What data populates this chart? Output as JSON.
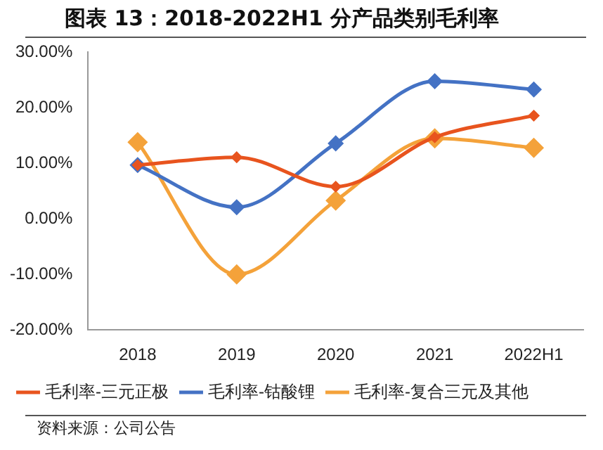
{
  "chart_data": {
    "type": "line",
    "title": "图表 13：2018-2022H1 分产品类别毛利率",
    "categories": [
      "2018",
      "2019",
      "2020",
      "2021",
      "2022H1"
    ],
    "series": [
      {
        "name": "毛利率-三元正极",
        "color": "#e8541e",
        "values": [
          9.7,
          11.1,
          5.8,
          14.7,
          18.6
        ]
      },
      {
        "name": "毛利率-钴酸锂",
        "color": "#4472c4",
        "values": [
          9.7,
          2.1,
          13.6,
          24.8,
          23.3
        ]
      },
      {
        "name": "毛利率-复合三元及其他",
        "color": "#f4a23a",
        "values": [
          13.8,
          -10.0,
          3.3,
          14.5,
          12.8
        ]
      }
    ],
    "ylim": [
      -20,
      30
    ],
    "yticks": [
      {
        "value": -20,
        "label": "-20.00%"
      },
      {
        "value": -10,
        "label": "-10.00%"
      },
      {
        "value": 0,
        "label": "0.00%"
      },
      {
        "value": 10,
        "label": "10.00%"
      },
      {
        "value": 20,
        "label": "20.00%"
      },
      {
        "value": 30,
        "label": "30.00%"
      }
    ],
    "grid": false,
    "legend": "bottom",
    "marker": "diamond",
    "line_style": "solid",
    "annotations": [
      "资料来源：公司公告"
    ]
  }
}
